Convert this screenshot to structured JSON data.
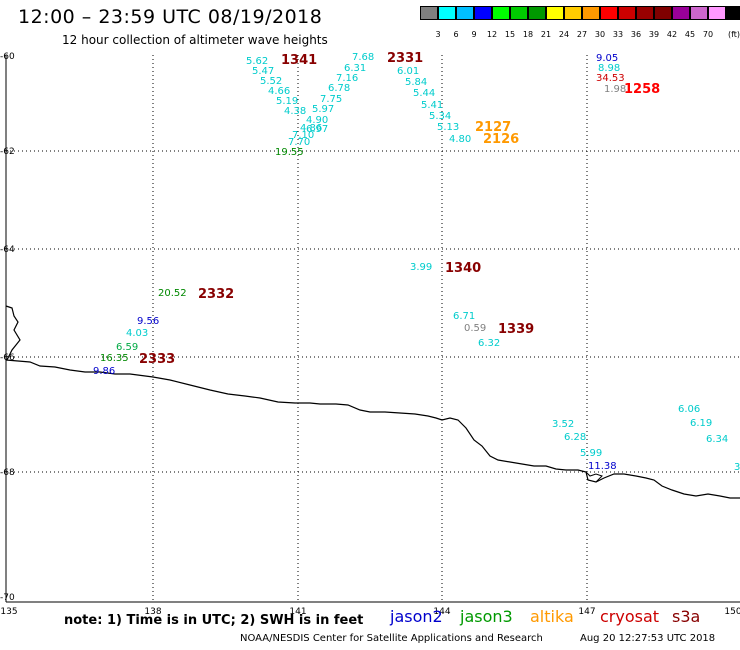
{
  "header": {
    "title": "12:00 – 23:59 UTC 08/19/2018",
    "subtitle": "12 hour collection of altimeter wave heights"
  },
  "colorbar": {
    "unit": "(ft)",
    "colors": [
      "#7f7f7f",
      "#00ffff",
      "#00bfff",
      "#0000ff",
      "#00ff00",
      "#00cc00",
      "#009900",
      "#ffff00",
      "#ffcc00",
      "#ff9900",
      "#ff0000",
      "#cc0000",
      "#990000",
      "#7f0000",
      "#990099",
      "#cc66cc",
      "#ff99ff",
      "#000000"
    ],
    "labels": [
      "3",
      "6",
      "9",
      "12",
      "15",
      "18",
      "21",
      "24",
      "27",
      "30",
      "33",
      "36",
      "39",
      "42",
      "45",
      "70"
    ]
  },
  "axes": {
    "lat_labels": [
      "-60",
      "-62",
      "-64",
      "-66",
      "-68",
      "-70"
    ],
    "lon_labels": [
      "135",
      "138",
      "141",
      "144",
      "147",
      "150"
    ]
  },
  "observations": [
    {
      "v": "5.62",
      "c": "#00cccc"
    },
    {
      "v": "5.47",
      "c": "#00cccc"
    },
    {
      "v": "5.52",
      "c": "#00cccc"
    },
    {
      "v": "4.66",
      "c": "#00cccc"
    },
    {
      "v": "5.19",
      "c": "#00cccc"
    },
    {
      "v": "4.38",
      "c": "#00cccc"
    },
    {
      "v": "4.90",
      "c": "#00cccc"
    },
    {
      "v": "4.86",
      "c": "#00cccc"
    },
    {
      "v": "7.10",
      "c": "#00cccc"
    },
    {
      "v": "7.70",
      "c": "#00cccc"
    },
    {
      "v": "19.55",
      "c": "#008800"
    },
    {
      "v": "7.68",
      "c": "#00cccc"
    },
    {
      "v": "6.31",
      "c": "#00cccc"
    },
    {
      "v": "7.16",
      "c": "#00cccc"
    },
    {
      "v": "6.78",
      "c": "#00cccc"
    },
    {
      "v": "7.75",
      "c": "#00cccc"
    },
    {
      "v": "5.97",
      "c": "#00cccc"
    },
    {
      "v": "6.97",
      "c": "#00cccc"
    },
    {
      "v": "6.01",
      "c": "#00cccc"
    },
    {
      "v": "5.84",
      "c": "#00cccc"
    },
    {
      "v": "5.44",
      "c": "#00cccc"
    },
    {
      "v": "5.41",
      "c": "#00cccc"
    },
    {
      "v": "5.34",
      "c": "#00cccc"
    },
    {
      "v": "5.13",
      "c": "#00cccc"
    },
    {
      "v": "4.80",
      "c": "#00cccc"
    },
    {
      "v": "9.05",
      "c": "#0000cc"
    },
    {
      "v": "8.98",
      "c": "#00cccc"
    },
    {
      "v": "34.53",
      "c": "#cc0000"
    },
    {
      "v": "1.98",
      "c": "#808080"
    },
    {
      "v": "3.99",
      "c": "#00cccc"
    },
    {
      "v": "20.52",
      "c": "#008800"
    },
    {
      "v": "9.56",
      "c": "#0000cc"
    },
    {
      "v": "4.03",
      "c": "#00cccc"
    },
    {
      "v": "6.59",
      "c": "#00aa44"
    },
    {
      "v": "16.35",
      "c": "#008800"
    },
    {
      "v": "9.86",
      "c": "#0000cc"
    },
    {
      "v": "6.71",
      "c": "#00cccc"
    },
    {
      "v": "0.59",
      "c": "#808080"
    },
    {
      "v": "6.32",
      "c": "#00cccc"
    },
    {
      "v": "3.52",
      "c": "#00cccc"
    },
    {
      "v": "6.28",
      "c": "#00cccc"
    },
    {
      "v": "5.99",
      "c": "#00cccc"
    },
    {
      "v": "11.38",
      "c": "#0000cc"
    },
    {
      "v": "6.06",
      "c": "#00cccc"
    },
    {
      "v": "6.19",
      "c": "#00cccc"
    },
    {
      "v": "6.34",
      "c": "#00cccc"
    },
    {
      "v": "3",
      "c": "#00cccc"
    }
  ],
  "time_labels": [
    {
      "v": "1341",
      "c": "#880000"
    },
    {
      "v": "2331",
      "c": "#880000"
    },
    {
      "v": "2127",
      "c": "#ff9900"
    },
    {
      "v": "2126",
      "c": "#ff9900"
    },
    {
      "v": "1258",
      "c": "#ff0000"
    },
    {
      "v": "1340",
      "c": "#880000"
    },
    {
      "v": "2332",
      "c": "#880000"
    },
    {
      "v": "1339",
      "c": "#880000"
    },
    {
      "v": "2333",
      "c": "#880000"
    }
  ],
  "footer": {
    "note": "note:  1) Time is in UTC;  2) SWH is in feet",
    "satellites": [
      {
        "name": "jason2",
        "color": "#0000cc"
      },
      {
        "name": "jason3",
        "color": "#009900"
      },
      {
        "name": "altika",
        "color": "#ff9900"
      },
      {
        "name": "cryosat",
        "color": "#cc0000"
      },
      {
        "name": "s3a",
        "color": "#880000"
      }
    ],
    "credit": "NOAA/NESDIS Center for Satellite Applications and Research",
    "timestamp": "Aug 20 12:27:53 UTC 2018"
  }
}
